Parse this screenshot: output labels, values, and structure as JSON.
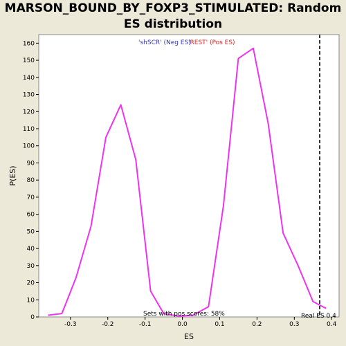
{
  "chart_data": {
    "type": "line",
    "title": "MARSON_BOUND_BY_FOXP3_STIMULATED: Random ES distribution",
    "xlabel": "ES",
    "ylabel": "P(ES)",
    "xlim": [
      -0.385,
      0.42
    ],
    "ylim": [
      0,
      165
    ],
    "x_ticks": [
      -0.3,
      -0.2,
      -0.1,
      0.0,
      0.1,
      0.2,
      0.3,
      0.4
    ],
    "x_tick_labels": [
      "-0.3",
      "-0.2",
      "-0.1",
      "0.0",
      "0.1",
      "0.2",
      "0.3",
      "0.4"
    ],
    "y_ticks": [
      0,
      10,
      20,
      30,
      40,
      50,
      60,
      70,
      80,
      90,
      100,
      110,
      120,
      130,
      140,
      150,
      160
    ],
    "grid": false,
    "series": [
      {
        "color": "#EE33EE",
        "x": [
          -0.36,
          -0.323,
          -0.285,
          -0.245,
          -0.205,
          -0.165,
          -0.125,
          -0.085,
          -0.05,
          -0.01,
          0.028,
          0.07,
          0.11,
          0.15,
          0.19,
          0.23,
          0.27,
          0.31,
          0.35,
          0.385
        ],
        "y": [
          1,
          2,
          23,
          53,
          105,
          124,
          92,
          15,
          2,
          0.5,
          1,
          6,
          65,
          151,
          157,
          113,
          49,
          30,
          9,
          5
        ]
      }
    ],
    "legend": [
      {
        "label": "'shSCR' (Neg ES)",
        "color": "#3333CC"
      },
      {
        "label": "'REST' (Pos ES)",
        "color": "#DD2222"
      }
    ],
    "real_es": 0.368,
    "annotations": {
      "pos_scores": "Sets with pos scores: 58%",
      "real_es_label": "Real ES 0.4"
    }
  }
}
